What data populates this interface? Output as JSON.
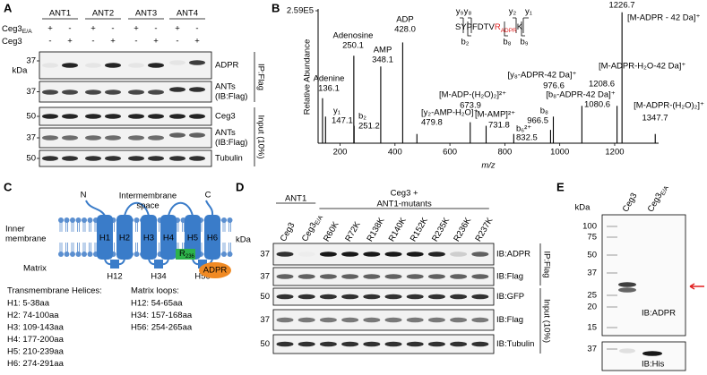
{
  "panel_a": {
    "letter": "A",
    "groups": [
      "ANT1",
      "ANT2",
      "ANT3",
      "ANT4"
    ],
    "rows": [
      {
        "name": {
          "text": "Ceg3",
          "sub": "E/A"
        },
        "signs": [
          "+",
          "-",
          "+",
          "-",
          "+",
          "-",
          "+",
          "-"
        ]
      },
      {
        "name": {
          "text": "Ceg3"
        },
        "signs": [
          "-",
          "+",
          "-",
          "+",
          "-",
          "+",
          "-",
          "+"
        ]
      }
    ],
    "unit": "kDa",
    "blots": [
      {
        "marker": 37,
        "label": [
          "ADPR"
        ]
      },
      {
        "marker": 37,
        "label": [
          "ANTs",
          "(IB:Flag)"
        ]
      },
      {
        "marker": 50,
        "label": [
          "Ceg3"
        ]
      },
      {
        "marker": 37,
        "label": [
          "ANTs",
          "(IB:Flag)"
        ]
      },
      {
        "marker": 50,
        "label": [
          "Tubulin"
        ]
      }
    ],
    "sections": [
      "IP:Flag",
      "Input (10%)"
    ]
  },
  "panel_b": {
    "letter": "B",
    "y_label": "Relative Abundance",
    "x_label": "m/z",
    "xlim": [
      120,
      1360
    ],
    "xticks": [
      200,
      400,
      600,
      800,
      1000,
      1200
    ],
    "ylim": [
      0,
      259000
    ],
    "yticks": [
      {
        "value": 259000,
        "label": "2.59E5"
      }
    ],
    "peptide": {
      "sequence": "SYPFDTV",
      "site": "R",
      "mod": "ADPR",
      "end": "K",
      "ions_top": [
        "y₉",
        "y₈",
        "y₂",
        "y₁"
      ],
      "ions_bottom": [
        "b₂",
        "b₈",
        "b₉"
      ]
    },
    "peaks": [
      {
        "mz": 136.1,
        "height": 88000,
        "name": "Adenine",
        "label": "136.1",
        "color": "#2e9e4f"
      },
      {
        "mz": 147.1,
        "height": 52000,
        "name": "y₁",
        "label": "147.1",
        "color": "#000000"
      },
      {
        "mz": 250.1,
        "height": 171000,
        "name": "Adenosine",
        "label": "250.1",
        "color": "#2e9e4f"
      },
      {
        "mz": 251.2,
        "height": 34000,
        "name": "b₂",
        "label": "251.2",
        "color": "#000000"
      },
      {
        "mz": 348.1,
        "height": 150000,
        "name": "AMP",
        "label": "348.1",
        "color": "#2e9e4f"
      },
      {
        "mz": 428.0,
        "height": 197000,
        "name": "ADP",
        "label": "428.0",
        "color": "#2e9e4f"
      },
      {
        "mz": 479.8,
        "height": 18000,
        "name": "[y₂-AMP-H₂O]⁺",
        "label": "479.8",
        "color": "#2e9e4f"
      },
      {
        "mz": 673.9,
        "height": 41000,
        "name": "[M-ADP-(H₂O)₂]²⁺",
        "label": "673.9",
        "color": "#2e9e4f"
      },
      {
        "mz": 731.8,
        "height": 34000,
        "name": "[M-AMP]²⁺",
        "label": "731.8",
        "color": "#2e9e4f"
      },
      {
        "mz": 832.5,
        "height": 18000,
        "name": "b₆²⁺",
        "label": "832.5",
        "color": "#000000"
      },
      {
        "mz": 966.5,
        "height": 26000,
        "name": "b₈",
        "label": "966.5",
        "color": "#000000"
      },
      {
        "mz": 976.6,
        "height": 52000,
        "name": "[y₈-ADPR-42 Da]⁺",
        "label": "976.6",
        "color": "#2e9e4f"
      },
      {
        "mz": 1080.6,
        "height": 73000,
        "name": "[b₈-ADPR-42 Da]⁺",
        "label": "1080.6",
        "color": "#2e9e4f"
      },
      {
        "mz": 1208.6,
        "height": 73000,
        "name": "[M-ADPR-H₂O-42 Da]⁺",
        "label": "1208.6",
        "color": "#2e9e4f"
      },
      {
        "mz": 1226.7,
        "height": 256000,
        "name": "[M-ADPR - 42 Da]⁺",
        "label": "1226.7",
        "color": "#2e9e4f"
      },
      {
        "mz": 1347.7,
        "height": 18000,
        "name": "[M-ADPR-(H₂O)₂]⁺",
        "label": "1347.7",
        "color": "#2e9e4f"
      }
    ]
  },
  "panel_c": {
    "letter": "C",
    "n_term": "N",
    "c_term": "C",
    "space": [
      "Intermembrane",
      "space"
    ],
    "membrane": [
      "Inner",
      "membrane"
    ],
    "matrix": "Matrix",
    "helices": [
      "H1",
      "H2",
      "H3",
      "H4",
      "H5",
      "H6"
    ],
    "loops": [
      "H12",
      "H34",
      "H56"
    ],
    "residue": {
      "text": "R",
      "sub": "236"
    },
    "modification": "ADPR",
    "tm_title": "Transmembrane Helices:",
    "tm": [
      "H1: 5-38aa",
      "H2: 74-100aa",
      "H3: 109-143aa",
      "H4: 177-200aa",
      "H5: 210-239aa",
      "H6: 274-291aa"
    ],
    "loop_title": "Matrix loops:",
    "loop_list": [
      "H12: 54-65aa",
      "H34: 157-168aa",
      "H56: 254-265aa"
    ]
  },
  "panel_d": {
    "letter": "D",
    "unit": "kDa",
    "group1": "ANT1",
    "group2": [
      "Ceg3 +",
      "ANT1-mutants"
    ],
    "lanes": [
      {
        "text": "Ceg3"
      },
      {
        "text": "Ceg3",
        "sub": "E/A"
      },
      {
        "text": "R60K"
      },
      {
        "text": "R72K"
      },
      {
        "text": "R138K"
      },
      {
        "text": "R140K"
      },
      {
        "text": "R152K"
      },
      {
        "text": "R235K"
      },
      {
        "text": "R236K"
      },
      {
        "text": "R237K"
      }
    ],
    "blots": [
      {
        "marker": 37,
        "label": "IB:ADPR"
      },
      {
        "marker": 37,
        "label": "IB:Flag"
      },
      {
        "marker": 50,
        "label": "IB:GFP"
      },
      {
        "marker": 37,
        "label": "IB:Flag"
      },
      {
        "marker": 50,
        "label": "IB:Tubulin"
      }
    ],
    "sections": [
      "IP:Flag",
      "Input (10%)"
    ]
  },
  "panel_e": {
    "letter": "E",
    "unit": "kDa",
    "lanes": [
      {
        "text": "Ceg3"
      },
      {
        "text": "Ceg3",
        "sub": "E/A"
      }
    ],
    "ladder": [
      100,
      75,
      50,
      37,
      25,
      20,
      15
    ],
    "ladder2": [
      37
    ],
    "labels": [
      "IB:ADPR",
      "IB:His"
    ]
  }
}
